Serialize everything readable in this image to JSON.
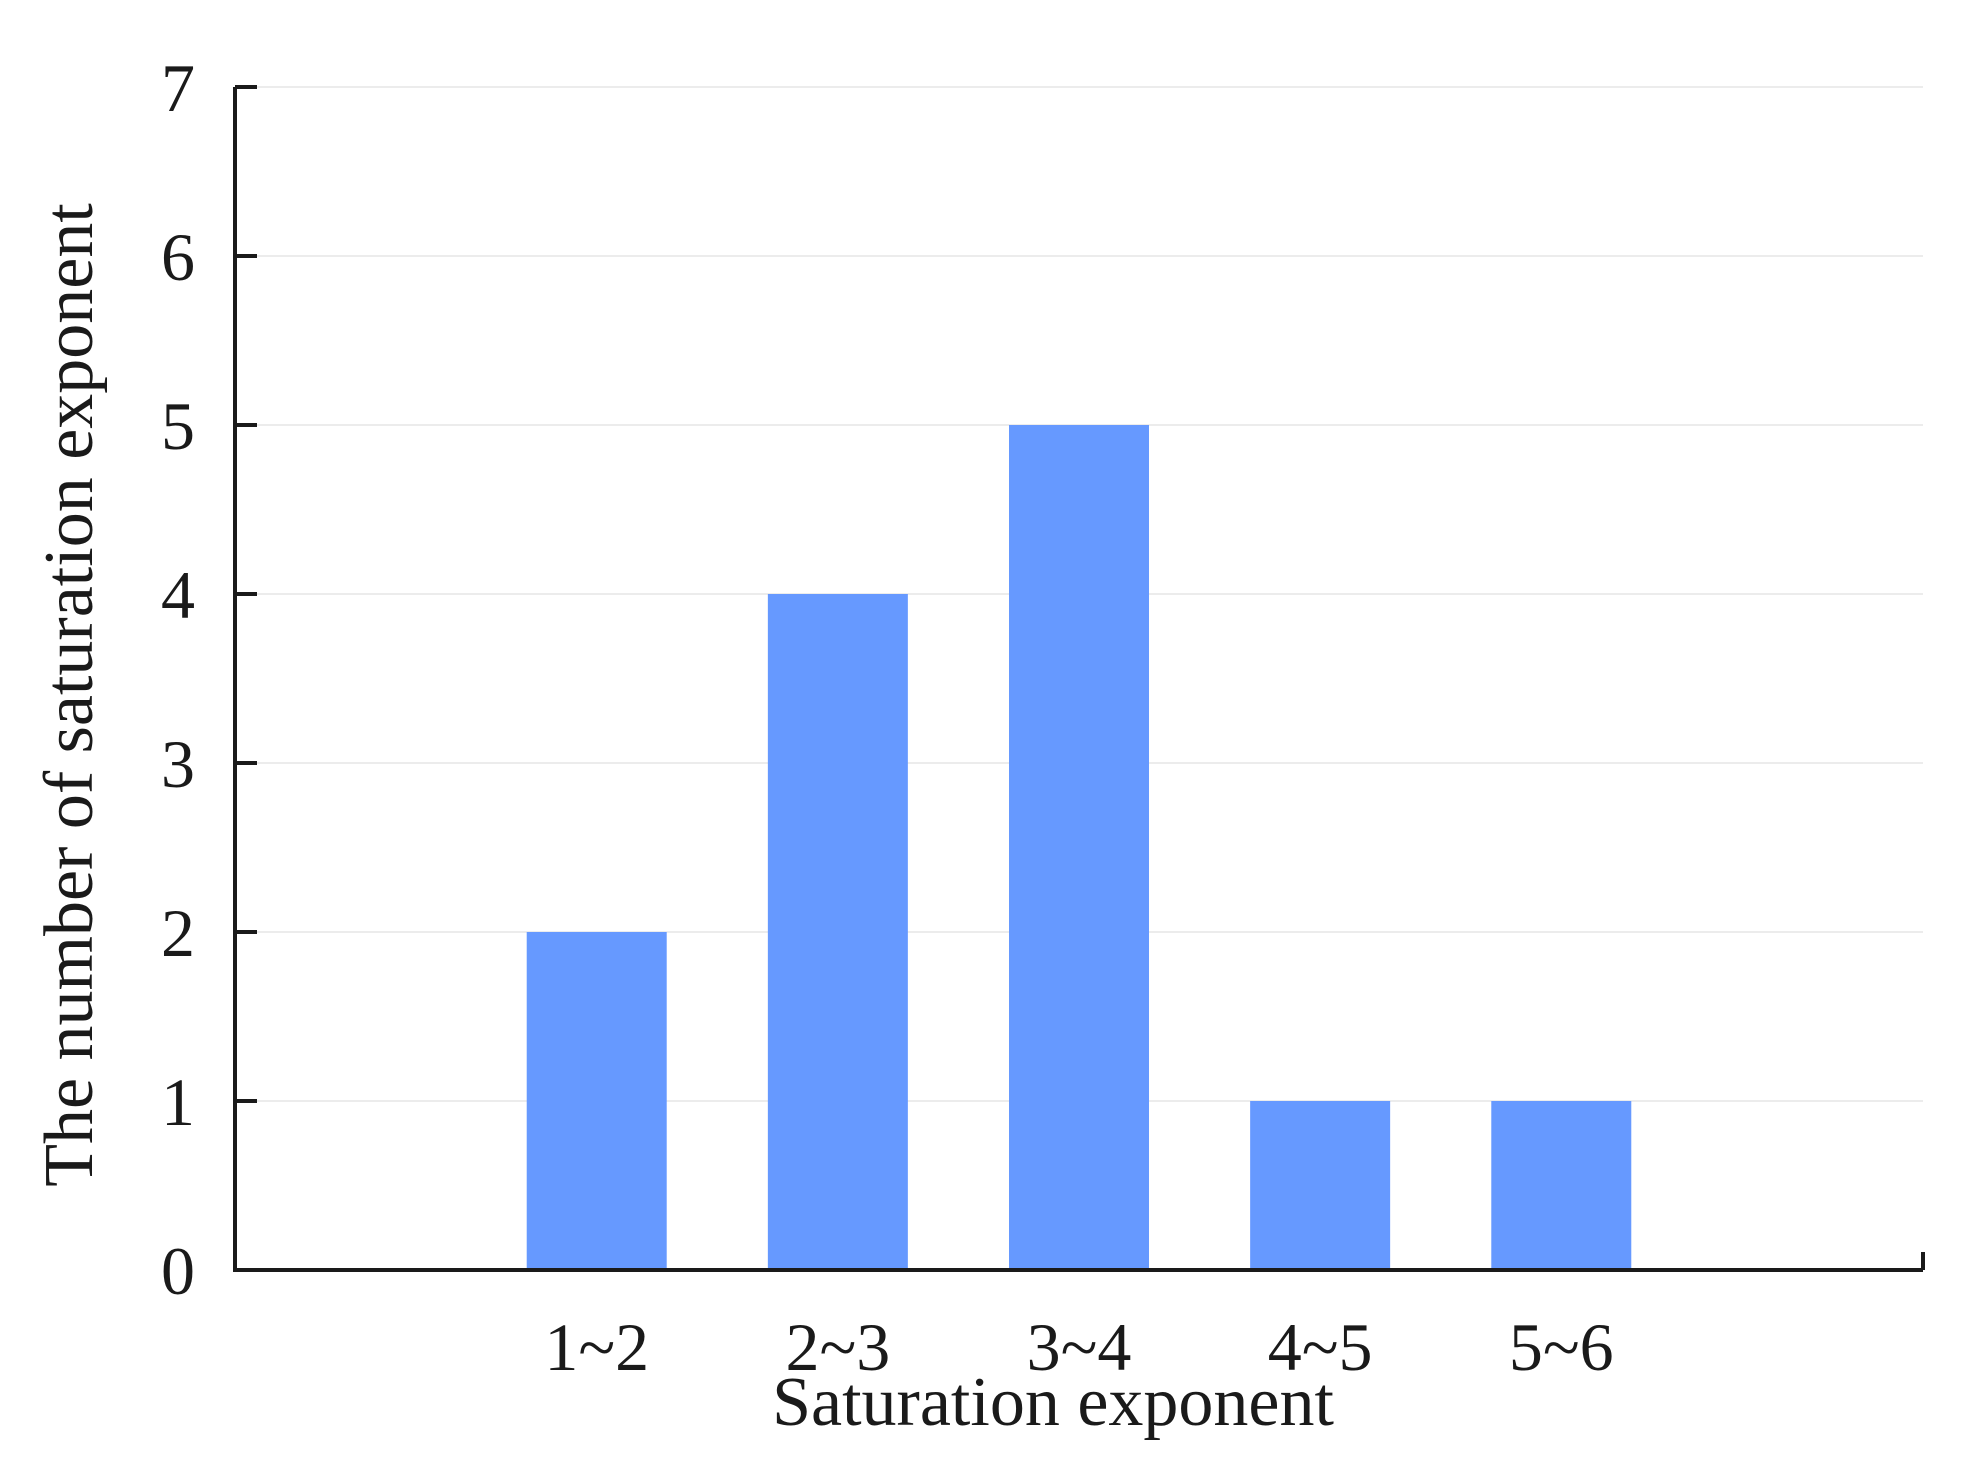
{
  "chart_data": {
    "type": "bar",
    "title": "",
    "xlabel": "Saturation exponent",
    "ylabel": "The number of saturation exponent",
    "categories": [
      "1~2",
      "2~3",
      "3~4",
      "4~5",
      "5~6"
    ],
    "values": [
      2,
      4,
      5,
      1,
      1
    ],
    "ylim": [
      0,
      7
    ],
    "yticks": [
      "0",
      "1",
      "2",
      "3",
      "4",
      "5",
      "6",
      "7"
    ],
    "grid": true,
    "legend": "none"
  },
  "colors": {
    "bar": "#6699ff",
    "axis": "#1a1a1a",
    "grid": "#ececec"
  }
}
